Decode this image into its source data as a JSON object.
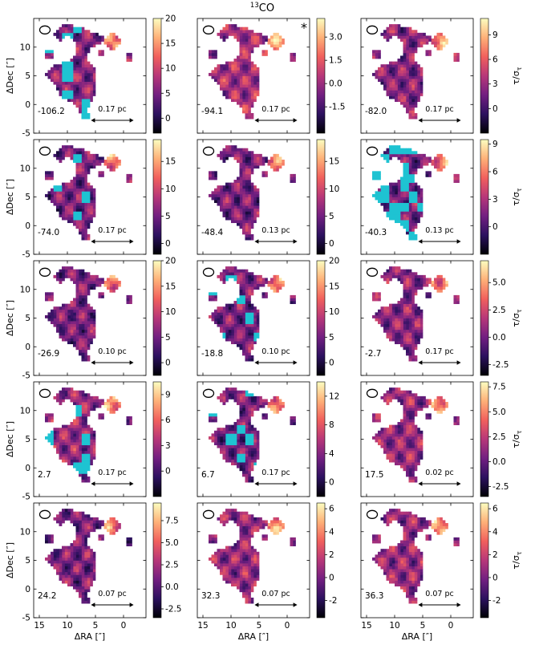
{
  "title_text": "CO",
  "title_sup": "13",
  "xlabel": "ΔRA [″]",
  "ylabel": "ΔDec [″]",
  "colorbar_label": "τ/σ",
  "colorbar_label_sub": "τ",
  "star_marker": "*",
  "colors": {
    "blanked": "#1ec3d2",
    "cmap": [
      "#000004",
      "#2c115f",
      "#721f81",
      "#b73779",
      "#f1605d",
      "#feb078",
      "#fcfdbf"
    ]
  },
  "chart_data": {
    "type": "heatmap",
    "xlim": [
      16,
      -4
    ],
    "ylim": [
      -5,
      15
    ],
    "xticks": [
      "15",
      "10",
      "5",
      "0"
    ],
    "yticks": [
      "-5",
      "0",
      "5",
      "10"
    ],
    "panels": [
      {
        "velocity": "-106.2",
        "scale_bar": "0.17 pc",
        "cbar": {
          "min": -3,
          "max": 20,
          "ticks": [
            "0",
            "5",
            "10",
            "15",
            "20"
          ]
        },
        "level": 0.55,
        "blanked": 0.18,
        "star": false
      },
      {
        "velocity": "-94.1",
        "scale_bar": "0.17 pc",
        "cbar": {
          "min": -3.2,
          "max": 4.2,
          "ticks": [
            "-1.5",
            "0.0",
            "1.5",
            "3.0"
          ]
        },
        "level": 0.65,
        "blanked": 0.0,
        "star": true
      },
      {
        "velocity": "-82.0",
        "scale_bar": "0.17 pc",
        "cbar": {
          "min": -3,
          "max": 11,
          "ticks": [
            "0",
            "3",
            "6",
            "9"
          ]
        },
        "level": 0.55,
        "blanked": 0.0,
        "star": false
      },
      {
        "velocity": "-74.0",
        "scale_bar": "0.17 pc",
        "cbar": {
          "min": -2,
          "max": 19,
          "ticks": [
            "0",
            "5",
            "10",
            "15"
          ]
        },
        "level": 0.5,
        "blanked": 0.05,
        "star": false
      },
      {
        "velocity": "-48.4",
        "scale_bar": "0.13 pc",
        "cbar": {
          "min": -2,
          "max": 19,
          "ticks": [
            "0",
            "5",
            "10",
            "15"
          ]
        },
        "level": 0.5,
        "blanked": 0.0,
        "star": false
      },
      {
        "velocity": "-40.3",
        "scale_bar": "0.13 pc",
        "cbar": {
          "min": -3,
          "max": 9.5,
          "ticks": [
            "0",
            "3",
            "6",
            "9"
          ]
        },
        "level": 0.5,
        "blanked": 0.55,
        "star": false
      },
      {
        "velocity": "-26.9",
        "scale_bar": "0.10 pc",
        "cbar": {
          "min": -2.5,
          "max": 20,
          "ticks": [
            "0",
            "5",
            "10",
            "15",
            "20"
          ]
        },
        "level": 0.5,
        "blanked": 0.0,
        "star": false
      },
      {
        "velocity": "-18.8",
        "scale_bar": "0.10 pc",
        "cbar": {
          "min": -2.5,
          "max": 20,
          "ticks": [
            "0",
            "5",
            "10",
            "15",
            "20"
          ]
        },
        "level": 0.5,
        "blanked": 0.1,
        "star": false
      },
      {
        "velocity": "-2.7",
        "scale_bar": "0.17 pc",
        "cbar": {
          "min": -3.5,
          "max": 7,
          "ticks": [
            "-2.5",
            "0.0",
            "2.5",
            "5.0"
          ]
        },
        "level": 0.55,
        "blanked": 0.0,
        "star": false
      },
      {
        "velocity": "2.7",
        "scale_bar": "0.17 pc",
        "cbar": {
          "min": -3,
          "max": 10.5,
          "ticks": [
            "0",
            "3",
            "6",
            "9"
          ]
        },
        "level": 0.6,
        "blanked": 0.12,
        "star": false
      },
      {
        "velocity": "6.7",
        "scale_bar": "0.17 pc",
        "cbar": {
          "min": -2,
          "max": 14,
          "ticks": [
            "0",
            "4",
            "8",
            "12"
          ]
        },
        "level": 0.5,
        "blanked": 0.1,
        "star": false
      },
      {
        "velocity": "17.5",
        "scale_bar": "0.02 pc",
        "cbar": {
          "min": -3.5,
          "max": 8,
          "ticks": [
            "-2.5",
            "0.0",
            "2.5",
            "5.0",
            "7.5"
          ]
        },
        "level": 0.6,
        "blanked": 0.0,
        "star": false
      },
      {
        "velocity": "24.2",
        "scale_bar": "0.07 pc",
        "cbar": {
          "min": -3.5,
          "max": 9.5,
          "ticks": [
            "-2.5",
            "0.0",
            "2.5",
            "5.0",
            "7.5"
          ]
        },
        "level": 0.5,
        "blanked": 0.0,
        "star": false
      },
      {
        "velocity": "32.3",
        "scale_bar": "0.07 pc",
        "cbar": {
          "min": -3.5,
          "max": 6.5,
          "ticks": [
            "-2",
            "0",
            "2",
            "4",
            "6"
          ]
        },
        "level": 0.6,
        "blanked": 0.0,
        "star": false
      },
      {
        "velocity": "36.3",
        "scale_bar": "0.07 pc",
        "cbar": {
          "min": -3.5,
          "max": 6.5,
          "ticks": [
            "-2",
            "0",
            "2",
            "4",
            "6"
          ]
        },
        "level": 0.6,
        "blanked": 0.0,
        "star": false
      }
    ]
  }
}
